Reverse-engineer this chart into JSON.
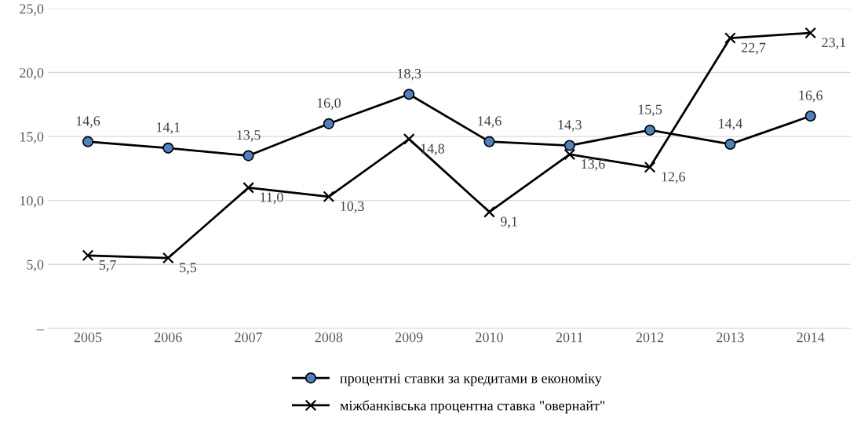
{
  "chart_data": {
    "type": "line",
    "categories": [
      "2005",
      "2006",
      "2007",
      "2008",
      "2009",
      "2010",
      "2011",
      "2012",
      "2013",
      "2014"
    ],
    "series": [
      {
        "name": "процентні ставки за кредитами в економіку",
        "color": "#4f81bd",
        "marker": "circle",
        "values": [
          14.6,
          14.1,
          13.5,
          16.0,
          18.3,
          14.6,
          14.3,
          15.5,
          14.4,
          16.6
        ],
        "value_labels": [
          "14,6",
          "14,1",
          "13,5",
          "16,0",
          "18,3",
          "14,6",
          "14,3",
          "15,5",
          "14,4",
          "16,6"
        ]
      },
      {
        "name": "міжбанківська процентна ставка \"овернайт\"",
        "color": "#000000",
        "marker": "cross",
        "values": [
          5.7,
          5.5,
          11.0,
          10.3,
          14.8,
          9.1,
          13.6,
          12.6,
          22.7,
          23.1
        ],
        "value_labels": [
          "5,7",
          "5,5",
          "11,0",
          "10,3",
          "14,8",
          "9,1",
          "13,6",
          "12,6",
          "22,7",
          "23,1"
        ]
      }
    ],
    "ylim": [
      0,
      25
    ],
    "yticks": [
      {
        "value": 0,
        "label": "–"
      },
      {
        "value": 5,
        "label": "5,0"
      },
      {
        "value": 10,
        "label": "10,0"
      },
      {
        "value": 15,
        "label": "15,0"
      },
      {
        "value": 20,
        "label": "20,0"
      },
      {
        "value": 25,
        "label": "25,0"
      }
    ],
    "grid": "y",
    "legend": "bottom",
    "line_style": "solid"
  }
}
